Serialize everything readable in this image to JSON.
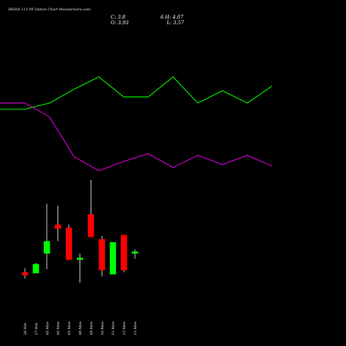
{
  "header": {
    "title": "IREDA 113 PE Option Chart MunafaSutra.com",
    "close_label": "C: 3.8",
    "open_label": "O: 3.93",
    "day_high_label": "6 H: 4.07",
    "low_label": "L: 3.57"
  },
  "colors": {
    "background": "#000000",
    "up": "#00ff00",
    "down": "#ff0000",
    "wick": "#ffffff",
    "green_line": "#00ee00",
    "magenta_line": "#cc00cc"
  },
  "chart_data": [
    {
      "type": "line",
      "series": [
        {
          "values": [
            8.5,
            8.5,
            8.9,
            9.8,
            10.6,
            9.3,
            9.3,
            10.6,
            8.9,
            9.7,
            8.9,
            10.0
          ]
        },
        {
          "values": [
            8.9,
            8.9,
            8.0,
            5.4,
            4.5,
            5.1,
            5.6,
            4.7,
            5.5,
            4.9,
            5.5,
            4.8
          ]
        }
      ]
    },
    {
      "type": "candlestick",
      "categories": [
        "26 Feb",
        "27 Feb",
        "02 Mon",
        "04 Mon",
        "05 Mon",
        "06 Mon",
        "09 Mon",
        "10 Mon",
        "11 Mon",
        "12 Mon",
        "13 Mon"
      ],
      "open": [
        1.6,
        1.5,
        3.4,
        6.2,
        5.9,
        2.8,
        7.2,
        4.8,
        1.4,
        5.2,
        3.4
      ],
      "high": [
        2.0,
        2.5,
        8.2,
        8.0,
        6.2,
        3.4,
        10.5,
        5.1,
        4.5,
        5.2,
        3.8
      ],
      "low": [
        1.0,
        1.5,
        1.9,
        4.6,
        2.8,
        0.6,
        5.0,
        1.2,
        1.4,
        1.6,
        2.9
      ],
      "close": [
        1.3,
        2.4,
        4.6,
        5.8,
        2.8,
        3.0,
        5.0,
        1.8,
        4.5,
        1.8,
        3.6
      ]
    }
  ]
}
